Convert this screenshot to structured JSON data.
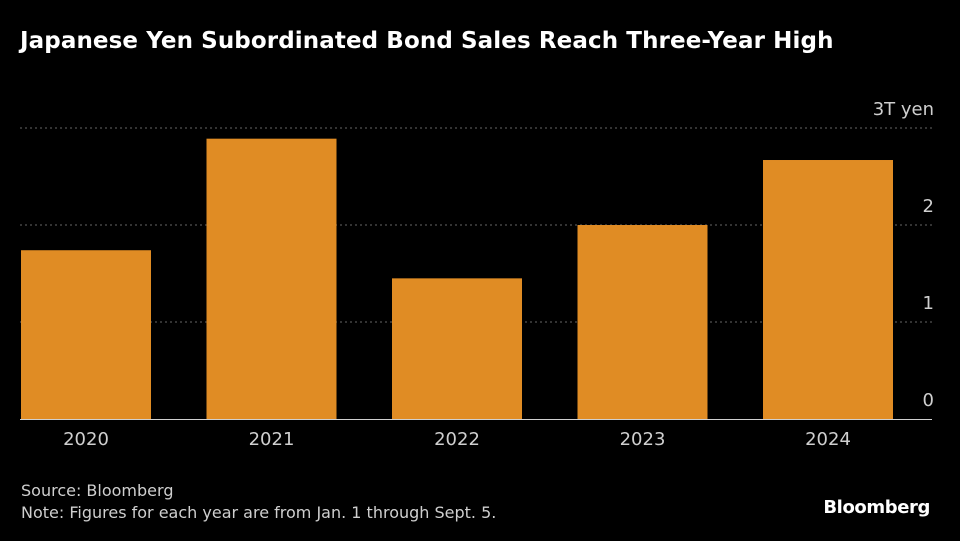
{
  "title": "Japanese Yen Subordinated Bond Sales Reach Three-Year High",
  "source": "Source: Bloomberg",
  "note": "Note: Figures for each year are from Jan. 1 through Sept. 5.",
  "logo": "Bloomberg",
  "colors": {
    "bar": "#e08c24",
    "background": "#000000",
    "grid": "#666666",
    "text": "#cfcfcf"
  },
  "chart_data": {
    "type": "bar",
    "title": "Japanese Yen Subordinated Bond Sales Reach Three-Year High",
    "xlabel": "",
    "ylabel": "",
    "y_unit_label": "3T yen",
    "categories": [
      "2020",
      "2021",
      "2022",
      "2023",
      "2024"
    ],
    "values": [
      1.74,
      2.89,
      1.45,
      2.0,
      2.67
    ],
    "ylim": [
      0,
      3
    ],
    "yticks": [
      {
        "value": 0,
        "label": "0"
      },
      {
        "value": 1,
        "label": "1"
      },
      {
        "value": 2,
        "label": "2"
      },
      {
        "value": 3,
        "label": "3T yen"
      }
    ],
    "grid": true,
    "legend": "none"
  }
}
